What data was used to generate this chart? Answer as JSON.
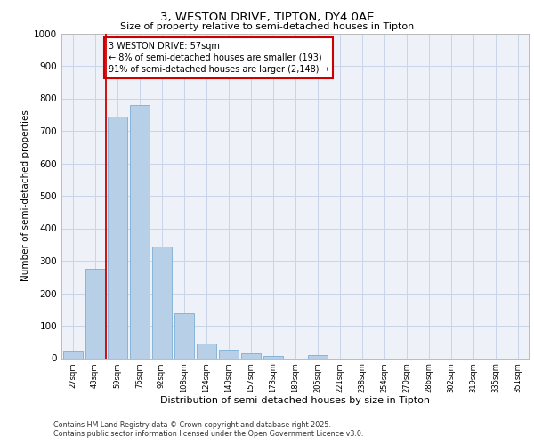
{
  "title1": "3, WESTON DRIVE, TIPTON, DY4 0AE",
  "title2": "Size of property relative to semi-detached houses in Tipton",
  "xlabel": "Distribution of semi-detached houses by size in Tipton",
  "ylabel": "Number of semi-detached properties",
  "categories": [
    "27sqm",
    "43sqm",
    "59sqm",
    "76sqm",
    "92sqm",
    "108sqm",
    "124sqm",
    "140sqm",
    "157sqm",
    "173sqm",
    "189sqm",
    "205sqm",
    "221sqm",
    "238sqm",
    "254sqm",
    "270sqm",
    "286sqm",
    "302sqm",
    "319sqm",
    "335sqm",
    "351sqm"
  ],
  "values": [
    22,
    275,
    745,
    780,
    345,
    138,
    46,
    27,
    15,
    8,
    0,
    10,
    0,
    0,
    0,
    0,
    0,
    0,
    0,
    0,
    0
  ],
  "bar_color": "#b8cfe8",
  "bar_edge_color": "#7aadd4",
  "grid_color": "#c8d4e8",
  "background_color": "#eef2f8",
  "vline_color": "#cc0000",
  "annotation_text": "3 WESTON DRIVE: 57sqm\n← 8% of semi-detached houses are smaller (193)\n91% of semi-detached houses are larger (2,148) →",
  "annotation_box_color": "#cc0000",
  "ylim": [
    0,
    1000
  ],
  "yticks": [
    0,
    100,
    200,
    300,
    400,
    500,
    600,
    700,
    800,
    900,
    1000
  ],
  "footer1": "Contains HM Land Registry data © Crown copyright and database right 2025.",
  "footer2": "Contains public sector information licensed under the Open Government Licence v3.0."
}
